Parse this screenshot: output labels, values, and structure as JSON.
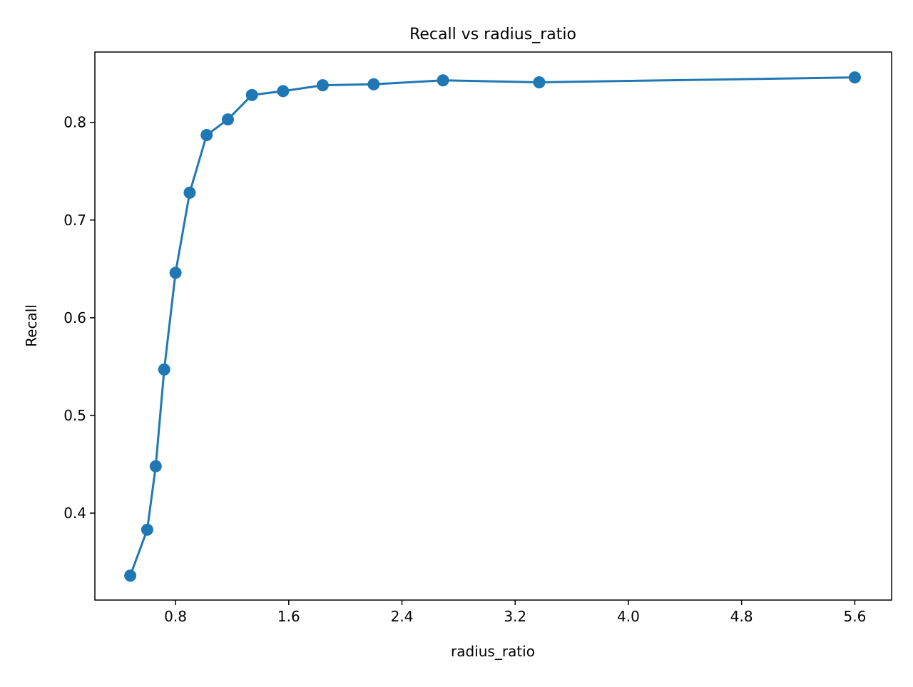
{
  "chart_data": {
    "type": "line",
    "title": "Recall vs radius_ratio",
    "xlabel": "radius_ratio",
    "ylabel": "Recall",
    "xlim": [
      0.23,
      5.86
    ],
    "ylim": [
      0.311,
      0.872
    ],
    "xticks": [
      0.8,
      1.6,
      2.4,
      3.2,
      4.0,
      4.8,
      5.6
    ],
    "xtick_labels": [
      "0.8",
      "1.6",
      "2.4",
      "3.2",
      "4.0",
      "4.8",
      "5.6"
    ],
    "yticks": [
      0.4,
      0.5,
      0.6,
      0.7,
      0.8
    ],
    "ytick_labels": [
      "0.4",
      "0.5",
      "0.6",
      "0.7",
      "0.8"
    ],
    "grid": false,
    "legend": false,
    "color": "#1f77b4",
    "marker": "circle",
    "series": [
      {
        "x": [
          0.48,
          0.6,
          0.66,
          0.72,
          0.8,
          0.9,
          1.02,
          1.17,
          1.34,
          1.56,
          1.84,
          2.2,
          2.69,
          3.37,
          5.6
        ],
        "values": [
          0.336,
          0.383,
          0.448,
          0.547,
          0.646,
          0.728,
          0.787,
          0.803,
          0.828,
          0.832,
          0.838,
          0.839,
          0.843,
          0.841,
          0.846
        ]
      }
    ]
  }
}
